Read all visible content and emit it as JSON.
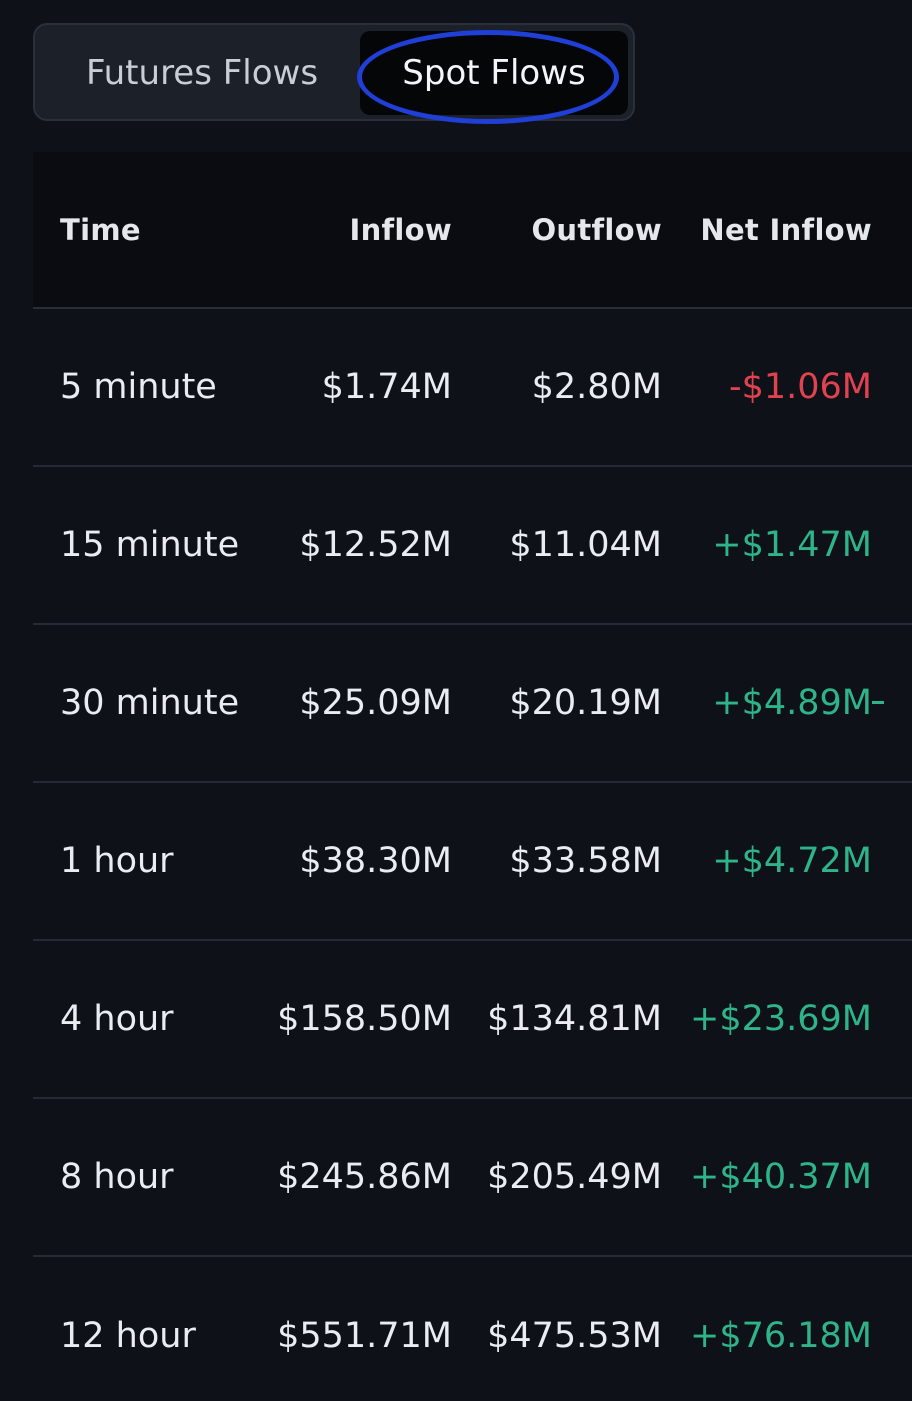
{
  "tabs": {
    "futures_label": "Futures Flows",
    "spot_label": "Spot Flows",
    "active": "Spot Flows"
  },
  "table": {
    "headers": {
      "time": "Time",
      "inflow": "Inflow",
      "outflow": "Outflow",
      "net_inflow": "Net Inflow"
    },
    "rows": [
      {
        "time": "5 minute",
        "inflow": "$1.74M",
        "outflow": "$2.80M",
        "net_inflow": "-$1.06M"
      },
      {
        "time": "15 minute",
        "inflow": "$12.52M",
        "outflow": "$11.04M",
        "net_inflow": "+$1.47M"
      },
      {
        "time": "30 minute",
        "inflow": "$25.09M",
        "outflow": "$20.19M",
        "net_inflow": "+$4.89M"
      },
      {
        "time": "1 hour",
        "inflow": "$38.30M",
        "outflow": "$33.58M",
        "net_inflow": "+$4.72M"
      },
      {
        "time": "4 hour",
        "inflow": "$158.50M",
        "outflow": "$134.81M",
        "net_inflow": "+$23.69M"
      },
      {
        "time": "8 hour",
        "inflow": "$245.86M",
        "outflow": "$205.49M",
        "net_inflow": "+$40.37M"
      },
      {
        "time": "12 hour",
        "inflow": "$551.71M",
        "outflow": "$475.53M",
        "net_inflow": "+$76.18M"
      }
    ]
  },
  "colors": {
    "background": "#0e1118",
    "negative": "#e0434f",
    "positive": "#2fb489",
    "annotation_ring": "#1f3fd6"
  }
}
